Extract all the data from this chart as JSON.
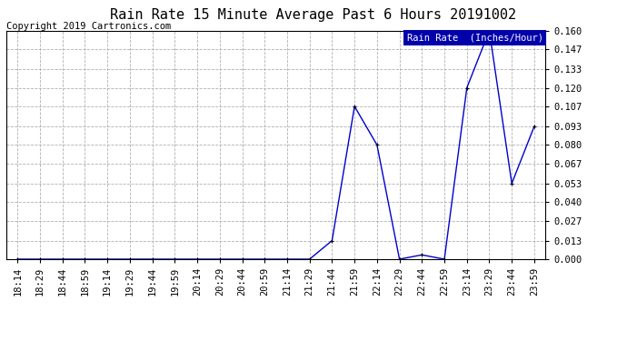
{
  "title": "Rain Rate 15 Minute Average Past 6 Hours 20191002",
  "copyright": "Copyright 2019 Cartronics.com",
  "legend_label": "Rain Rate  (Inches/Hour)",
  "x_labels": [
    "18:14",
    "18:29",
    "18:44",
    "18:59",
    "19:14",
    "19:29",
    "19:44",
    "19:59",
    "20:14",
    "20:29",
    "20:44",
    "20:59",
    "21:14",
    "21:29",
    "21:44",
    "21:59",
    "22:14",
    "22:29",
    "22:44",
    "22:59",
    "23:14",
    "23:29",
    "23:44",
    "23:59"
  ],
  "y_values": [
    0.0,
    0.0,
    0.0,
    0.0,
    0.0,
    0.0,
    0.0,
    0.0,
    0.0,
    0.0,
    0.0,
    0.0,
    0.0,
    0.0,
    0.013,
    0.107,
    0.08,
    0.0,
    0.003,
    0.0,
    0.12,
    0.16,
    0.053,
    0.093
  ],
  "y_ticks": [
    0.0,
    0.013,
    0.027,
    0.04,
    0.053,
    0.067,
    0.08,
    0.093,
    0.107,
    0.12,
    0.133,
    0.147,
    0.16
  ],
  "line_color": "#0000cc",
  "marker_color": "#000000",
  "bg_color": "#ffffff",
  "plot_bg_color": "#ffffff",
  "grid_color": "#b0b0b0",
  "legend_bg": "#0000aa",
  "legend_text_color": "#ffffff",
  "title_color": "#000000",
  "copyright_color": "#000000",
  "ylim_min": 0.0,
  "ylim_max": 0.16,
  "title_fontsize": 11,
  "copyright_fontsize": 7.5,
  "legend_fontsize": 7.5,
  "tick_fontsize": 7.5,
  "marker_size": 3,
  "line_width": 1.0
}
